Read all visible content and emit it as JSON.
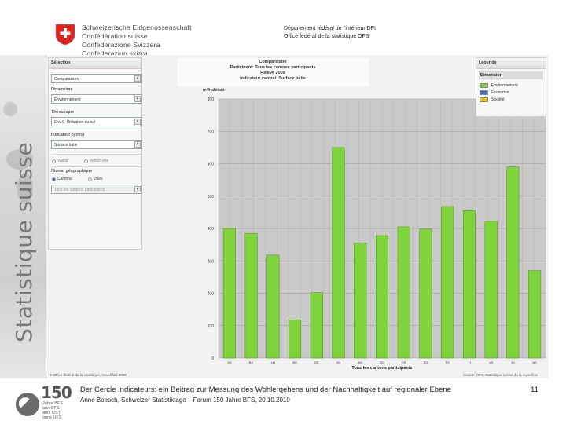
{
  "header": {
    "confederation": [
      "Schweizerische Eidgenossenschaft",
      "Confédération suisse",
      "Confederazione Svizzera",
      "Confederaziun svizra"
    ],
    "department": [
      "Département fédéral de l'intérieur DFI",
      "Office fédéral de la statistique OFS"
    ]
  },
  "side_title": "Statistique suisse",
  "panel": {
    "heading": "Sélection",
    "select1": "Comparaisons",
    "dimension_label": "Dimension",
    "dimension_value": "Environnement",
    "theme_label": "Thématique",
    "theme_value": "Env 9: Utilisation du sol",
    "indicator_label": "Indicateur central",
    "indicator_value": "Surface bâtie",
    "opt_value": "Valeur",
    "opt_city": "Valeur ville",
    "level_label": "Niveau géographique",
    "level_cantons": "Cantons",
    "level_cities": "Villes",
    "level_select": "Tous les cantons participants"
  },
  "chart_title": [
    "Comparaison",
    "Participant: Tous les cantons participants",
    "Relevé 2009",
    "Indicateur central: Surface bâtie"
  ],
  "legend": {
    "heading": "Légende",
    "sub": "Dimension",
    "items": [
      {
        "label": "Environnement",
        "color": "#7ec93a"
      },
      {
        "label": "Économie",
        "color": "#3f6fc6"
      },
      {
        "label": "Société",
        "color": "#f0c419"
      }
    ]
  },
  "chart_data": {
    "type": "bar",
    "ylabel": "m²/habitant",
    "xlabel": "Tous les cantons participants",
    "ylim": [
      0,
      800
    ],
    "yticks": [
      0,
      100,
      200,
      300,
      400,
      500,
      600,
      700,
      800
    ],
    "categories": [
      "ZH",
      "BE",
      "LU",
      "BS",
      "GE",
      "VD",
      "AG",
      "SO",
      "FR",
      "SG",
      "TG",
      "TI",
      "VS",
      "JU",
      "NE"
    ],
    "values": [
      400,
      385,
      318,
      118,
      202,
      650,
      355,
      378,
      405,
      398,
      468,
      455,
      422,
      590,
      270
    ],
    "bar_color": "#7ed43a"
  },
  "copyright": "© Office fédéral de la statistique, Neuchâtel 2009",
  "source": "Source: OFS, Statistique suisse de la superficie",
  "footer": {
    "line1": "Der Cercle Indicateurs: ein Beitrag zur Messung des Wohlergehens und der Nachhaltigkeit auf regionaler Ebene",
    "line2": "Anne Boesch, Schweizer Statistiktage – Forum 150 Jahre BFS, 20.10.2010",
    "page": "11",
    "logo_number": "150",
    "logo_years": [
      "Jahre BFS",
      "ans OFS",
      "anni UST",
      "onns UFS"
    ]
  }
}
